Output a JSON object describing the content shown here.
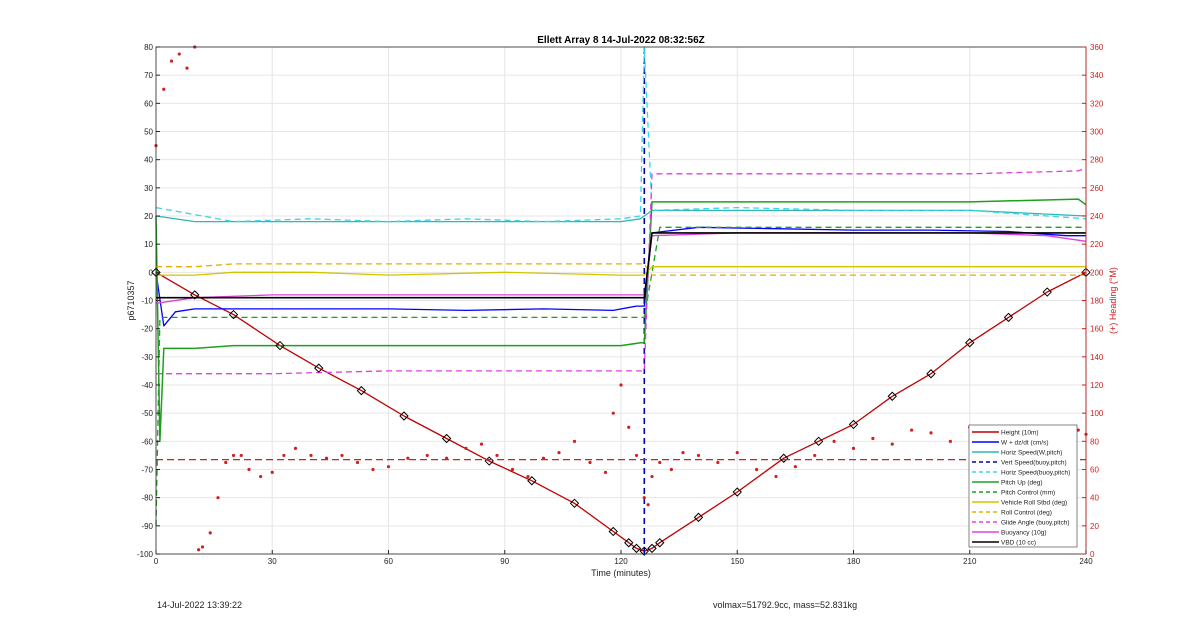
{
  "footer": {
    "left_timestamp": "14-Jul-2022 13:39:22",
    "right_info": "volmax=51792.9cc, mass=52.831kg"
  },
  "chart_data": {
    "type": "line",
    "title": "Ellett Array 8 14-Jul-2022 08:32:56Z",
    "xlabel": "Time (minutes)",
    "ylabel_left": "p6710357",
    "ylabel_right": "(+) Heading (°M)",
    "xlim": [
      0,
      240
    ],
    "ylim_left": [
      -100,
      80
    ],
    "ylim_right": [
      0,
      360
    ],
    "x_ticks": [
      0,
      30,
      60,
      90,
      120,
      150,
      180,
      210,
      240
    ],
    "y_ticks_left": [
      -100,
      -90,
      -80,
      -70,
      -60,
      -50,
      -40,
      -30,
      -20,
      -10,
      0,
      10,
      20,
      30,
      40,
      50,
      60,
      70,
      80
    ],
    "y_ticks_right": [
      0,
      20,
      40,
      60,
      80,
      100,
      120,
      140,
      160,
      180,
      200,
      220,
      240,
      260,
      280,
      300,
      320,
      340,
      360
    ],
    "grid": true,
    "legend_position": "bottom-right",
    "colors": {
      "height": "#c00000",
      "w": "#0000ff",
      "horiz_speed": "#2fb7b7",
      "vert_speed": "#0000aa",
      "horiz_speed_buoy": "#34d7e8",
      "pitch": "#1ea01e",
      "pitch_control": "#1ea01e",
      "roll": "#d4c400",
      "roll_control": "#e0b000",
      "glide_angle": "#e040e0",
      "buoyancy": "#e040e0",
      "vbd": "#000000",
      "heading": "#d02020",
      "heading_ref": "#d02020",
      "axis_right": "#d02020"
    },
    "series": [
      {
        "key": "height",
        "name": "Height (10m)",
        "style": "solid",
        "axis": "left",
        "x": [
          0,
          10,
          20,
          32,
          42,
          53,
          64,
          75,
          86,
          97,
          108,
          118,
          122,
          124,
          126,
          128,
          130,
          140,
          150,
          162,
          171,
          180,
          190,
          200,
          210,
          220,
          230,
          240
        ],
        "y": [
          0,
          -8,
          -15,
          -26,
          -34,
          -42,
          -51,
          -59,
          -67,
          -74,
          -82,
          -92,
          -96,
          -98,
          -99,
          -98,
          -96,
          -87,
          -78,
          -66,
          -60,
          -54,
          -44,
          -36,
          -25,
          -16,
          -7,
          0
        ]
      },
      {
        "key": "w",
        "name": "W + dz/dt (cm/s)",
        "style": "solid",
        "axis": "left",
        "x": [
          0,
          2,
          5,
          10,
          20,
          40,
          60,
          80,
          100,
          118,
          124,
          126,
          128,
          140,
          160,
          180,
          200,
          220,
          235,
          240
        ],
        "y": [
          0,
          -19,
          -14,
          -13,
          -13,
          -13,
          -13,
          -13.5,
          -13,
          -13.5,
          -12,
          -12,
          14,
          16,
          15.5,
          15,
          15,
          14.5,
          13,
          13
        ]
      },
      {
        "key": "horiz_speed",
        "name": "Horiz Speed(W,pitch)",
        "style": "solid",
        "axis": "left",
        "x": [
          0,
          10,
          30,
          60,
          90,
          120,
          125,
          126,
          128,
          150,
          180,
          210,
          240
        ],
        "y": [
          20,
          18,
          18,
          18,
          18,
          18,
          19,
          20,
          22,
          22,
          22,
          22,
          20
        ]
      },
      {
        "key": "vert_speed",
        "name": "Vert Speed(buoy,pitch)",
        "style": "dashed",
        "axis": "left",
        "x": [
          126,
          126
        ],
        "y": [
          -100,
          80
        ]
      },
      {
        "key": "horiz_speed_buoy",
        "name": "Horiz Speed(buoy,pitch)",
        "style": "dashed",
        "axis": "left",
        "x": [
          0,
          20,
          40,
          60,
          80,
          100,
          120,
          125,
          126,
          128,
          150,
          180,
          210,
          240
        ],
        "y": [
          23,
          18,
          19,
          18,
          19,
          18,
          19,
          20,
          80,
          22,
          23,
          22,
          22,
          19
        ]
      },
      {
        "key": "pitch",
        "name": "Pitch Up (deg)",
        "style": "solid",
        "axis": "left",
        "x": [
          0,
          1,
          2,
          5,
          10,
          20,
          30,
          60,
          90,
          120,
          125,
          126,
          128,
          150,
          180,
          210,
          238,
          240
        ],
        "y": [
          20,
          -60,
          -27,
          -27,
          -27,
          -26,
          -26,
          -26,
          -26,
          -26,
          -25,
          -25,
          25,
          25,
          25,
          25,
          26,
          24
        ]
      },
      {
        "key": "pitch_control",
        "name": "Pitch Control (mm)",
        "style": "dashed",
        "axis": "left",
        "x": [
          0,
          1,
          2,
          5,
          30,
          60,
          90,
          120,
          125,
          126,
          130,
          160,
          190,
          220,
          240
        ],
        "y": [
          -90,
          -16,
          -16,
          -16,
          -16,
          -16,
          -16,
          -16,
          -16,
          -16,
          16,
          16,
          16,
          16,
          16
        ]
      },
      {
        "key": "roll",
        "name": "Vehicle Roll Stbd (deg)",
        "style": "solid",
        "axis": "left",
        "x": [
          0,
          10,
          20,
          40,
          60,
          90,
          120,
          125,
          126,
          128,
          150,
          180,
          210,
          240
        ],
        "y": [
          -1,
          -1,
          0,
          0,
          -1,
          0,
          -1,
          -1,
          -1,
          2,
          2,
          2,
          2,
          2
        ]
      },
      {
        "key": "roll_control",
        "name": "Roll Control (deg)",
        "style": "dashed",
        "axis": "left",
        "x": [
          0,
          10,
          20,
          40,
          60,
          90,
          120,
          125,
          126,
          128,
          150,
          180,
          210,
          240
        ],
        "y": [
          2,
          2,
          3,
          3,
          3,
          3,
          3,
          3,
          3,
          -1,
          -1,
          -1,
          -1,
          -1
        ]
      },
      {
        "key": "glide_angle",
        "name": "Glide Angle (buoy,pitch)",
        "style": "dashed",
        "axis": "left",
        "x": [
          0,
          10,
          30,
          60,
          90,
          120,
          125,
          126,
          128,
          150,
          180,
          210,
          238,
          240
        ],
        "y": [
          -36,
          -36,
          -36,
          -35,
          -35,
          -35,
          -35,
          -35,
          35,
          35,
          35,
          35,
          36,
          37
        ]
      },
      {
        "key": "buoyancy",
        "name": "Buoyancy (10g)",
        "style": "solid",
        "axis": "left",
        "x": [
          0,
          10,
          30,
          60,
          90,
          120,
          125,
          126,
          128,
          150,
          180,
          210,
          230,
          240
        ],
        "y": [
          -11,
          -9,
          -8,
          -8,
          -8,
          -8,
          -8,
          -8,
          13,
          14,
          14,
          14,
          13,
          11
        ]
      },
      {
        "key": "vbd",
        "name": "VBD (10 cc)",
        "style": "solid",
        "axis": "left",
        "x": [
          0,
          5,
          30,
          60,
          90,
          120,
          125,
          126,
          128,
          150,
          180,
          210,
          240
        ],
        "y": [
          -9,
          -9,
          -9,
          -9,
          -9,
          -9,
          -9,
          -9,
          14,
          14,
          14,
          14,
          14
        ]
      }
    ],
    "heading_ref": {
      "axis": "right",
      "y": 67
    },
    "heading": {
      "axis": "right",
      "x": [
        0,
        2,
        4,
        6,
        8,
        10,
        11,
        12,
        14,
        16,
        18,
        20,
        22,
        24,
        27,
        30,
        33,
        36,
        40,
        44,
        48,
        52,
        56,
        60,
        65,
        70,
        75,
        80,
        84,
        88,
        92,
        96,
        100,
        104,
        108,
        112,
        116,
        118,
        120,
        122,
        124,
        126,
        127,
        128,
        130,
        133,
        136,
        140,
        145,
        150,
        155,
        160,
        165,
        170,
        175,
        180,
        185,
        190,
        195,
        200,
        205,
        210,
        215,
        220,
        225,
        230,
        234,
        238,
        240
      ],
      "y": [
        290,
        330,
        350,
        355,
        345,
        360,
        3,
        5,
        15,
        40,
        65,
        70,
        70,
        60,
        55,
        58,
        70,
        75,
        70,
        68,
        70,
        65,
        60,
        62,
        68,
        70,
        68,
        75,
        78,
        70,
        60,
        55,
        68,
        72,
        80,
        65,
        58,
        100,
        120,
        90,
        70,
        40,
        35,
        55,
        65,
        60,
        72,
        70,
        65,
        72,
        60,
        55,
        62,
        70,
        80,
        75,
        82,
        78,
        88,
        86,
        80,
        90,
        82,
        85,
        90,
        75,
        70,
        88,
        85
      ]
    },
    "legend_entries": [
      "Height (10m)",
      "W + dz/dt (cm/s)",
      "Horiz Speed(W,pitch)",
      "Vert Speed(buoy,pitch)",
      "Horiz Speed(buoy,pitch)",
      "Pitch Up (deg)",
      "Pitch Control (mm)",
      "Vehicle Roll Stbd (deg)",
      "Roll Control (deg)",
      "Glide Angle (buoy,pitch)",
      "Buoyancy (10g)",
      "VBD (10 cc)"
    ]
  }
}
